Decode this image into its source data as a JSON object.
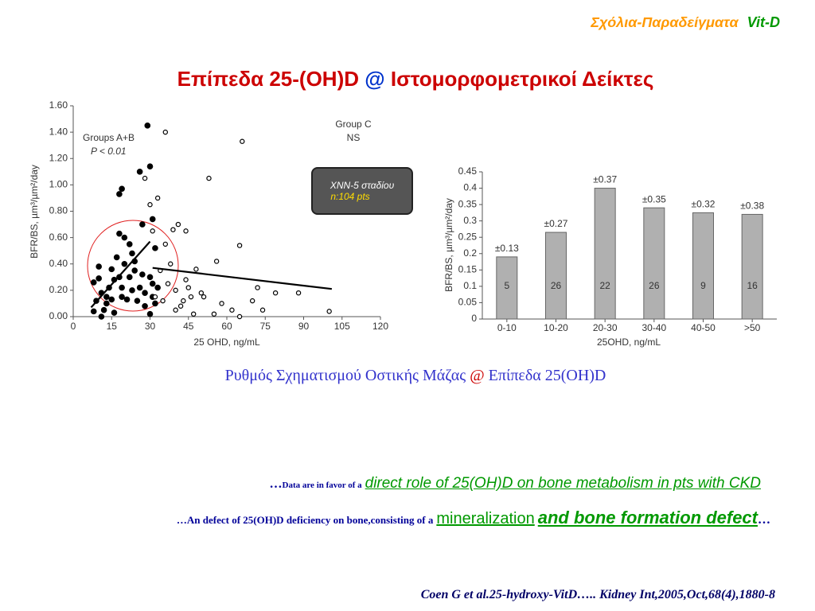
{
  "header": {
    "topic": "Σχόλια-Παραδείγματα",
    "tag": "Vit-D"
  },
  "title": {
    "part1": "Επίπεδα 25-(OH)D",
    "at": "@",
    "part2": "Ιστομορφομετρικοί Δείκτες"
  },
  "badge": {
    "line1": "XNN-5 σταδίου",
    "line2": "n:104 pts"
  },
  "caption": {
    "part1": "Ρυθμός Σχηματισμού Οστικής Μάζας",
    "at": "@",
    "part2": "Επίπεδα 25(OH)D"
  },
  "notes": [
    {
      "lead": "…",
      "small": "Data are in favor of a",
      "big": "direct role of 25(OH)D on bone metabolism in pts with CKD"
    },
    {
      "lead": "…An defect of 25(OH)D deficiency on bone,consisting of a",
      "big1": "mineralization",
      "big2": "and bone formation defect",
      "tail": "…"
    }
  ],
  "citation": "Coen G et al.25-hydroxy-VitD….. Kidney Int,2005,Oct,68(4),1880-8",
  "chart_data": [
    {
      "type": "scatter",
      "x_label": "25 OHD, ng/mL",
      "y_label": "BFR/BS, µm³/µm²/day",
      "xlim": [
        0,
        120
      ],
      "xticks": [
        0,
        15,
        30,
        45,
        60,
        75,
        90,
        105,
        120
      ],
      "ylim": [
        0,
        1.6
      ],
      "yticks": [
        {
          "value": 0,
          "label": "0.00"
        },
        {
          "value": 0.2,
          "label": "0.20"
        },
        {
          "value": 0.4,
          "label": "0.40"
        },
        {
          "value": 0.6,
          "label": "0.60"
        },
        {
          "value": 0.8,
          "label": "0.80"
        },
        {
          "value": 1.0,
          "label": "1.00"
        },
        {
          "value": 1.2,
          "label": "1.20"
        },
        {
          "value": 1.4,
          "label": "1.40"
        },
        {
          "value": 1.6,
          "label": "1.60"
        }
      ],
      "series": [
        {
          "name": "Groups A+B",
          "note": "P < 0.01",
          "marker": "filled",
          "color": "#000000",
          "x": [
            8,
            9,
            10,
            10,
            11,
            12,
            13,
            14,
            15,
            15,
            16,
            17,
            18,
            18,
            19,
            19,
            20,
            20,
            21,
            22,
            22,
            23,
            23,
            24,
            25,
            26,
            27,
            27,
            28,
            28,
            29,
            30,
            31,
            31,
            32,
            32,
            33,
            18,
            19,
            26,
            30,
            31,
            13,
            16,
            24,
            8,
            11,
            30
          ],
          "values": [
            0.26,
            0.12,
            0.38,
            0.29,
            0.18,
            0.05,
            0.1,
            0.22,
            0.36,
            0.13,
            0.03,
            0.45,
            0.63,
            0.3,
            0.22,
            0.15,
            0.6,
            0.4,
            0.13,
            0.55,
            0.3,
            0.48,
            0.2,
            0.35,
            0.12,
            0.22,
            0.7,
            0.32,
            0.08,
            0.18,
            1.45,
            0.3,
            0.25,
            0.15,
            0.52,
            0.1,
            0.22,
            0.93,
            0.97,
            1.1,
            1.14,
            0.74,
            0.15,
            0.28,
            0.42,
            0.04,
            0.0,
            0.02
          ],
          "trend": {
            "x": [
              7,
              30
            ],
            "y": [
              0.07,
              0.57
            ]
          }
        },
        {
          "name": "Group C",
          "note": "NS",
          "marker": "open",
          "color": "#000000",
          "x": [
            30,
            31,
            33,
            35,
            36,
            37,
            38,
            39,
            40,
            40,
            41,
            42,
            43,
            44,
            45,
            46,
            47,
            48,
            50,
            51,
            53,
            55,
            56,
            58,
            62,
            65,
            65,
            66,
            70,
            72,
            74,
            79,
            88,
            100,
            32,
            34,
            36,
            28,
            44
          ],
          "values": [
            0.85,
            0.65,
            0.9,
            0.12,
            0.55,
            0.25,
            0.4,
            0.66,
            0.2,
            0.05,
            0.7,
            0.08,
            0.12,
            0.28,
            0.22,
            0.15,
            0.02,
            0.36,
            0.18,
            0.15,
            1.05,
            0.02,
            0.42,
            0.1,
            0.05,
            0.54,
            0.0,
            1.33,
            0.12,
            0.22,
            0.05,
            0.18,
            0.18,
            0.04,
            0.15,
            0.35,
            1.4,
            1.05,
            0.65
          ],
          "trend": {
            "x": [
              31,
              101
            ],
            "y": [
              0.37,
              0.21
            ]
          }
        }
      ]
    },
    {
      "type": "bar",
      "x_label": "25OHD, ng/mL",
      "y_label": "BFR/BS, µm³/µm²/day",
      "categories": [
        "0-10",
        "10-20",
        "20-30",
        "30-40",
        "40-50",
        ">50"
      ],
      "values": [
        0.19,
        0.265,
        0.4,
        0.34,
        0.325,
        0.32
      ],
      "error_labels": [
        "±0.13",
        "±0.27",
        "±0.37",
        "±0.35",
        "±0.32",
        "±0.38"
      ],
      "counts": [
        5,
        26,
        22,
        26,
        9,
        16
      ],
      "color": "#b0b0b0",
      "ylim": [
        0,
        0.45
      ],
      "yticks": [
        0,
        0.05,
        0.1,
        0.15,
        0.2,
        0.25,
        0.3,
        0.35,
        0.4,
        0.45
      ]
    }
  ]
}
